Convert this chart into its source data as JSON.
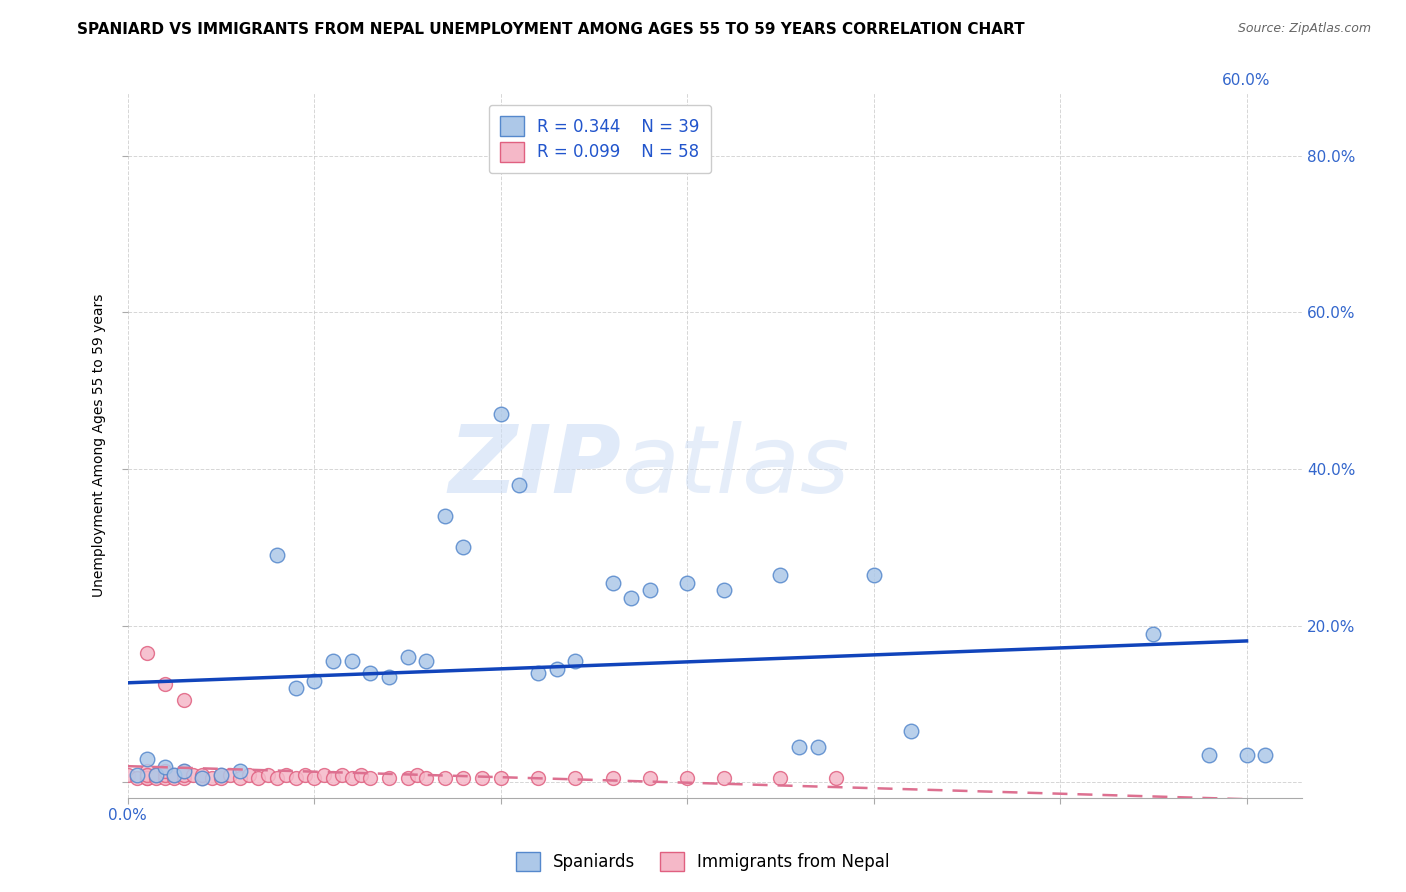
{
  "title": "SPANIARD VS IMMIGRANTS FROM NEPAL UNEMPLOYMENT AMONG AGES 55 TO 59 YEARS CORRELATION CHART",
  "source": "Source: ZipAtlas.com",
  "ylabel": "Unemployment Among Ages 55 to 59 years",
  "xlim": [
    0.0,
    0.63
  ],
  "ylim": [
    -0.02,
    0.88
  ],
  "xticks": [
    0.0,
    0.1,
    0.2,
    0.3,
    0.4,
    0.5,
    0.6
  ],
  "yticks": [
    0.0,
    0.2,
    0.4,
    0.6,
    0.8
  ],
  "xticklabels_left": [
    "0.0%",
    "",
    "",
    "",
    "",
    "",
    ""
  ],
  "xticklabels_right": [
    "",
    "",
    "",
    "",
    "",
    "",
    "60.0%"
  ],
  "yticklabels_right": [
    "",
    "20.0%",
    "40.0%",
    "60.0%",
    "80.0%"
  ],
  "spaniards_x": [
    0.005,
    0.01,
    0.015,
    0.02,
    0.025,
    0.03,
    0.04,
    0.05,
    0.06,
    0.08,
    0.09,
    0.1,
    0.11,
    0.12,
    0.13,
    0.14,
    0.15,
    0.16,
    0.17,
    0.18,
    0.2,
    0.21,
    0.22,
    0.23,
    0.24,
    0.26,
    0.27,
    0.28,
    0.3,
    0.32,
    0.35,
    0.36,
    0.37,
    0.4,
    0.42,
    0.55,
    0.58,
    0.6,
    0.61
  ],
  "spaniards_y": [
    0.01,
    0.03,
    0.01,
    0.02,
    0.01,
    0.015,
    0.005,
    0.01,
    0.015,
    0.29,
    0.12,
    0.13,
    0.155,
    0.155,
    0.14,
    0.135,
    0.16,
    0.155,
    0.34,
    0.3,
    0.47,
    0.38,
    0.14,
    0.145,
    0.155,
    0.255,
    0.235,
    0.245,
    0.255,
    0.245,
    0.265,
    0.045,
    0.045,
    0.265,
    0.065,
    0.19,
    0.035,
    0.035,
    0.035
  ],
  "nepal_x": [
    0.0,
    0.005,
    0.01,
    0.01,
    0.01,
    0.01,
    0.01,
    0.015,
    0.015,
    0.02,
    0.02,
    0.02,
    0.025,
    0.025,
    0.03,
    0.03,
    0.03,
    0.035,
    0.04,
    0.04,
    0.045,
    0.05,
    0.05,
    0.055,
    0.06,
    0.065,
    0.07,
    0.075,
    0.08,
    0.085,
    0.09,
    0.095,
    0.1,
    0.105,
    0.11,
    0.115,
    0.12,
    0.125,
    0.13,
    0.14,
    0.15,
    0.155,
    0.16,
    0.17,
    0.18,
    0.19,
    0.2,
    0.22,
    0.24,
    0.26,
    0.28,
    0.3,
    0.32,
    0.35,
    0.38,
    0.01,
    0.02,
    0.03
  ],
  "nepal_y": [
    0.01,
    0.005,
    0.01,
    0.015,
    0.005,
    0.005,
    0.01,
    0.005,
    0.01,
    0.005,
    0.01,
    0.015,
    0.005,
    0.01,
    0.005,
    0.01,
    0.015,
    0.01,
    0.005,
    0.01,
    0.005,
    0.005,
    0.01,
    0.01,
    0.005,
    0.01,
    0.005,
    0.01,
    0.005,
    0.01,
    0.005,
    0.01,
    0.005,
    0.01,
    0.005,
    0.01,
    0.005,
    0.01,
    0.005,
    0.005,
    0.005,
    0.01,
    0.005,
    0.005,
    0.005,
    0.005,
    0.005,
    0.005,
    0.005,
    0.005,
    0.005,
    0.005,
    0.005,
    0.005,
    0.005,
    0.165,
    0.125,
    0.105
  ],
  "spaniard_color": "#adc8e8",
  "spaniard_edge_color": "#5588cc",
  "nepal_color": "#f5b8c8",
  "nepal_edge_color": "#e06080",
  "trendline_spaniard_color": "#1144bb",
  "trendline_nepal_color": "#dd7090",
  "trendline_nepal_dash": [
    6,
    4
  ],
  "legend_R_spaniard": "R = 0.344",
  "legend_N_spaniard": "N = 39",
  "legend_R_nepal": "R = 0.099",
  "legend_N_nepal": "N = 58",
  "legend_label_spaniard": "Spaniards",
  "legend_label_nepal": "Immigrants from Nepal",
  "watermark_zip": "ZIP",
  "watermark_atlas": "atlas",
  "background_color": "#ffffff",
  "grid_color": "#cccccc",
  "title_fontsize": 11,
  "axis_label_fontsize": 10,
  "tick_fontsize": 11,
  "legend_fontsize": 12
}
